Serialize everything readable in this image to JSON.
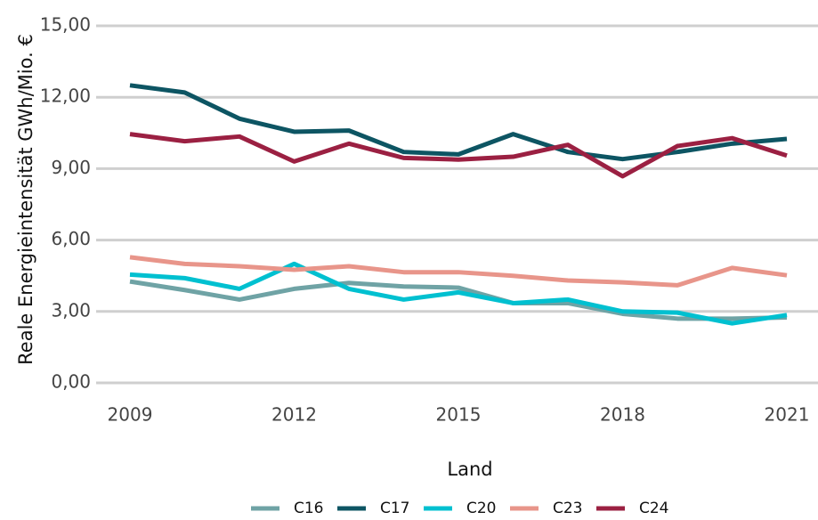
{
  "chart_data": {
    "type": "line",
    "x_label": "Land",
    "y_label": "Reale Energieintensität GWh/Mio. €",
    "x": [
      2009,
      2010,
      2011,
      2012,
      2013,
      2014,
      2015,
      2016,
      2017,
      2018,
      2019,
      2020,
      2021
    ],
    "series": [
      {
        "name": "C16",
        "color": "#6fa3a5",
        "values": [
          4.26,
          3.9,
          3.5,
          3.95,
          4.2,
          4.05,
          4.0,
          3.35,
          3.35,
          2.9,
          2.7,
          2.7,
          2.75
        ]
      },
      {
        "name": "C17",
        "color": "#0d5563",
        "values": [
          12.5,
          12.2,
          11.1,
          10.55,
          10.6,
          9.7,
          9.6,
          10.45,
          9.7,
          9.4,
          9.7,
          10.05,
          10.25
        ]
      },
      {
        "name": "C20",
        "color": "#00c0d0",
        "values": [
          4.55,
          4.4,
          3.95,
          5.0,
          3.95,
          3.5,
          3.8,
          3.35,
          3.5,
          3.0,
          2.95,
          2.5,
          2.85
        ]
      },
      {
        "name": "C23",
        "color": "#e8958a",
        "values": [
          5.28,
          5.0,
          4.9,
          4.75,
          4.9,
          4.65,
          4.65,
          4.5,
          4.3,
          4.22,
          4.1,
          4.83,
          4.52
        ]
      },
      {
        "name": "C24",
        "color": "#9b2042",
        "values": [
          10.45,
          10.15,
          10.35,
          9.3,
          10.05,
          9.45,
          9.38,
          9.5,
          10.0,
          8.68,
          9.95,
          10.28,
          9.55
        ]
      }
    ],
    "xlim": [
      2009,
      2021
    ],
    "xticks": [
      2009,
      2012,
      2015,
      2018,
      2021
    ],
    "ylim": [
      0,
      15
    ],
    "yticks": [
      {
        "value": 0,
        "label": "0,00"
      },
      {
        "value": 3,
        "label": "3,00"
      },
      {
        "value": 6,
        "label": "6,00"
      },
      {
        "value": 9,
        "label": "9,00"
      },
      {
        "value": 12,
        "label": "12,00"
      },
      {
        "value": 15,
        "label": "15,00"
      }
    ],
    "grid": true,
    "legend": "bottom"
  }
}
